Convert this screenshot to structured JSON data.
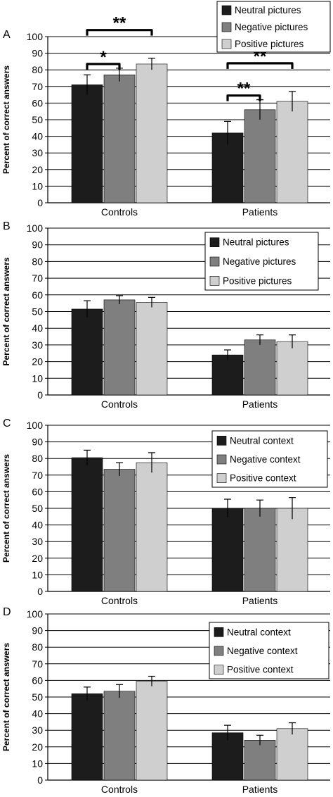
{
  "colors": {
    "neutral": "#1c1c1c",
    "negative": "#7f7f7f",
    "positive": "#cfcfcf",
    "axis": "#000000",
    "grid": "#000000"
  },
  "chart_data": [
    {
      "type": "bar",
      "panel_label": "A",
      "ylabel": "Percent of correct answers",
      "ylim": [
        0,
        100
      ],
      "yticks": [
        0,
        10,
        20,
        30,
        40,
        50,
        60,
        70,
        80,
        90,
        100
      ],
      "categories": [
        "Controls",
        "Patients"
      ],
      "grid": true,
      "legend_position": "top-right",
      "series": [
        {
          "name": "Neutral pictures",
          "color_key": "neutral",
          "values": [
            71,
            42
          ],
          "errors": [
            6,
            7
          ]
        },
        {
          "name": "Negative pictures",
          "color_key": "negative",
          "values": [
            77,
            56
          ],
          "errors": [
            4,
            6
          ]
        },
        {
          "name": "Positive pictures",
          "color_key": "positive",
          "values": [
            83.5,
            61
          ],
          "errors": [
            3.5,
            6
          ]
        }
      ],
      "annotations": [
        {
          "text": "**",
          "category": 0,
          "from": 0,
          "to": 2,
          "level": 2
        },
        {
          "text": "*",
          "category": 0,
          "from": 0,
          "to": 1,
          "level": 1
        },
        {
          "text": "**",
          "category": 1,
          "from": 0,
          "to": 2,
          "level": 2
        },
        {
          "text": "**",
          "category": 1,
          "from": 0,
          "to": 1,
          "level": 1
        }
      ]
    },
    {
      "type": "bar",
      "panel_label": "B",
      "ylabel": "Percent of correct answers",
      "ylim": [
        0,
        100
      ],
      "yticks": [
        0,
        10,
        20,
        30,
        40,
        50,
        60,
        70,
        80,
        90,
        100
      ],
      "categories": [
        "Controls",
        "Patients"
      ],
      "grid": true,
      "legend_position": "top-right",
      "series": [
        {
          "name": "Neutral pictures",
          "color_key": "neutral",
          "values": [
            51.5,
            24
          ],
          "errors": [
            5,
            3
          ]
        },
        {
          "name": "Negative pictures",
          "color_key": "negative",
          "values": [
            57,
            33
          ],
          "errors": [
            2.5,
            3
          ]
        },
        {
          "name": "Positive pictures",
          "color_key": "positive",
          "values": [
            55.5,
            32
          ],
          "errors": [
            3,
            4
          ]
        }
      ],
      "annotations": []
    },
    {
      "type": "bar",
      "panel_label": "C",
      "ylabel": "Percent of correct answers",
      "ylim": [
        0,
        100
      ],
      "yticks": [
        0,
        10,
        20,
        30,
        40,
        50,
        60,
        70,
        80,
        90,
        100
      ],
      "categories": [
        "Controls",
        "Patients"
      ],
      "grid": true,
      "legend_position": "top-right",
      "series": [
        {
          "name": "Neutral context",
          "color_key": "neutral",
          "values": [
            80.5,
            50
          ],
          "errors": [
            4.5,
            5.5
          ]
        },
        {
          "name": "Negative context",
          "color_key": "negative",
          "values": [
            73.5,
            50
          ],
          "errors": [
            4,
            5
          ]
        },
        {
          "name": "Positive context",
          "color_key": "positive",
          "values": [
            77.5,
            50
          ],
          "errors": [
            6,
            6.5
          ]
        }
      ],
      "annotations": []
    },
    {
      "type": "bar",
      "panel_label": "D",
      "ylabel": "Percent of correct answers",
      "ylim": [
        0,
        100
      ],
      "yticks": [
        0,
        10,
        20,
        30,
        40,
        50,
        60,
        70,
        80,
        90,
        100
      ],
      "categories": [
        "Controls",
        "Patients"
      ],
      "grid": true,
      "legend_position": "top-right",
      "series": [
        {
          "name": "Neutral context",
          "color_key": "neutral",
          "values": [
            52,
            28.5
          ],
          "errors": [
            4,
            4.5
          ]
        },
        {
          "name": "Negative context",
          "color_key": "negative",
          "values": [
            53.5,
            24
          ],
          "errors": [
            4,
            3
          ]
        },
        {
          "name": "Positive context",
          "color_key": "positive",
          "values": [
            59.5,
            31
          ],
          "errors": [
            3,
            3.5
          ]
        }
      ],
      "annotations": []
    }
  ]
}
